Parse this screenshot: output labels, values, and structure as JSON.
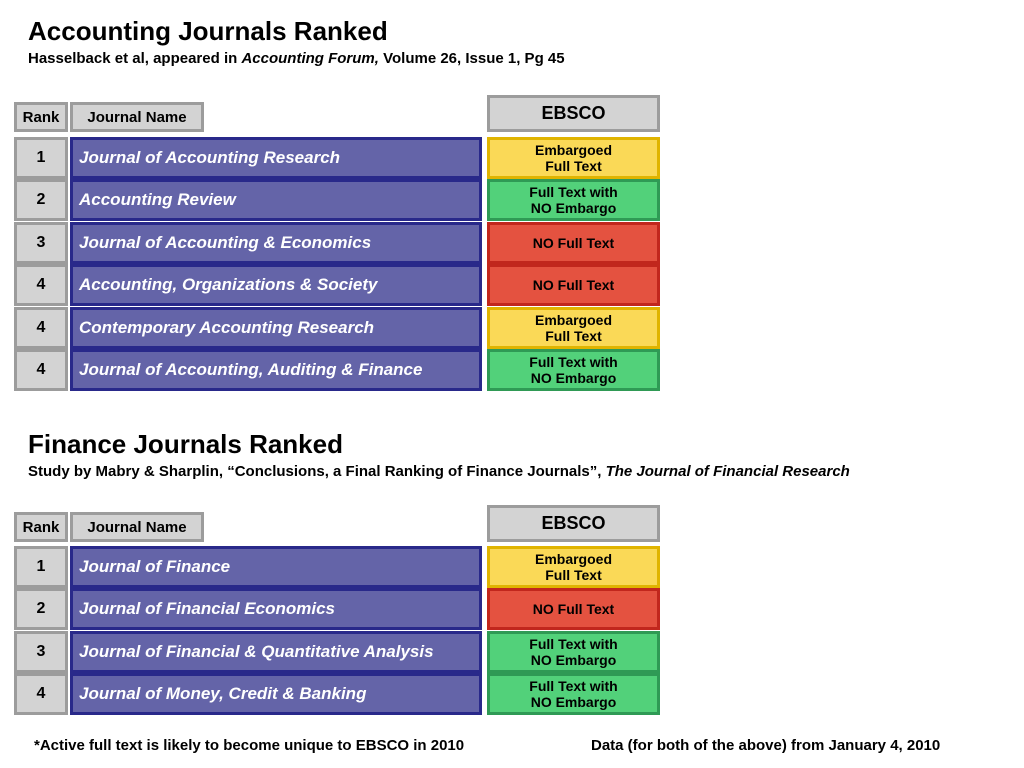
{
  "accounting": {
    "title": "Accounting Journals Ranked",
    "subtitle_pre": "Hasselback et al, appeared in ",
    "subtitle_italic": "Accounting Forum,",
    "subtitle_post": " Volume 26, Issue 1, Pg 45",
    "header_rank": "Rank",
    "header_journal": "Journal Name",
    "header_ebsco": "EBSCO",
    "rows": [
      {
        "rank": "1",
        "journal": "Journal of Accounting Research",
        "ebsco": "Embargoed\nFull Text",
        "status": "embargoed"
      },
      {
        "rank": "2",
        "journal": "Accounting Review",
        "ebsco": "Full Text with\nNO Embargo",
        "status": "full"
      },
      {
        "rank": "3",
        "journal": "Journal of Accounting & Economics",
        "ebsco": "NO Full Text",
        "status": "none"
      },
      {
        "rank": "4",
        "journal": "Accounting, Organizations & Society",
        "ebsco": "NO Full Text",
        "status": "none"
      },
      {
        "rank": "4",
        "journal": "Contemporary Accounting Research",
        "ebsco": "Embargoed\nFull Text",
        "status": "embargoed"
      },
      {
        "rank": "4",
        "journal": "Journal of Accounting, Auditing & Finance",
        "ebsco": "Full Text with\nNO Embargo",
        "status": "full"
      }
    ]
  },
  "finance": {
    "title": "Finance Journals Ranked",
    "subtitle_pre": "Study by Mabry & Sharplin, “Conclusions, a Final Ranking of Finance Journals”, ",
    "subtitle_italic": "The Journal of Financial Research",
    "subtitle_post": "",
    "header_rank": "Rank",
    "header_journal": "Journal Name",
    "header_ebsco": "EBSCO",
    "rows": [
      {
        "rank": "1",
        "journal": "Journal of Finance",
        "ebsco": "Embargoed\nFull Text",
        "status": "embargoed"
      },
      {
        "rank": "2",
        "journal": "Journal of Financial Economics",
        "ebsco": "NO Full Text",
        "status": "none"
      },
      {
        "rank": "3",
        "journal": "Journal of Financial & Quantitative Analysis",
        "ebsco": "Full Text with\nNO Embargo",
        "status": "full"
      },
      {
        "rank": "4",
        "journal": "Journal of Money, Credit & Banking",
        "ebsco": "Full Text with\nNO Embargo",
        "status": "full"
      }
    ]
  },
  "footer": {
    "left_note": "*Active full text is likely to become unique to EBSCO in 2010",
    "right_note": "Data (for both of the above) from January 4, 2010"
  },
  "colors": {
    "journal_fill": "#6464a8",
    "journal_border": "#29298a",
    "embargoed": "#fad957",
    "full_text": "#52d17a",
    "no_full_text": "#e45240",
    "header_gray": "#d3d3d3"
  }
}
